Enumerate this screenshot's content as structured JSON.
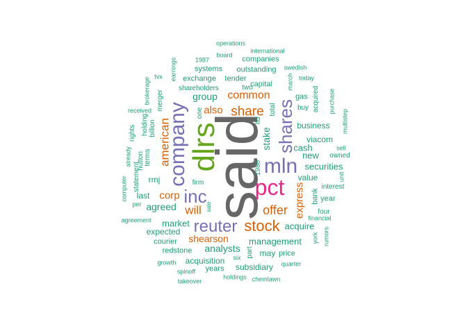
{
  "palette": {
    "teal": "#1b9e77",
    "orange": "#d95f02",
    "purple": "#7570b3",
    "pink": "#e7298a",
    "green": "#66a61e",
    "gray": "#666666"
  },
  "words": [
    {
      "text": "said",
      "color": "gray"
    },
    {
      "text": "dlrs",
      "color": "green"
    },
    {
      "text": "pct",
      "color": "pink"
    },
    {
      "text": "company",
      "color": "purple"
    },
    {
      "text": "mln",
      "color": "purple"
    },
    {
      "text": "shares",
      "color": "purple"
    },
    {
      "text": "inc",
      "color": "purple"
    },
    {
      "text": "reuter",
      "color": "purple"
    },
    {
      "text": "stock",
      "color": "orange"
    },
    {
      "text": "share",
      "color": "orange"
    },
    {
      "text": "common",
      "color": "orange"
    },
    {
      "text": "offer",
      "color": "orange"
    },
    {
      "text": "american",
      "color": "orange"
    },
    {
      "text": "also",
      "color": "orange"
    },
    {
      "text": "will",
      "color": "orange"
    },
    {
      "text": "corp",
      "color": "orange"
    },
    {
      "text": "express",
      "color": "orange"
    },
    {
      "text": "shearson",
      "color": "orange"
    },
    {
      "text": "group",
      "color": "teal"
    },
    {
      "text": "agreed",
      "color": "teal"
    },
    {
      "text": "management",
      "color": "teal"
    },
    {
      "text": "analysts",
      "color": "teal"
    },
    {
      "text": "market",
      "color": "teal"
    },
    {
      "text": "acquire",
      "color": "teal"
    },
    {
      "text": "securities",
      "color": "teal"
    },
    {
      "text": "business",
      "color": "teal"
    },
    {
      "text": "cash",
      "color": "teal"
    },
    {
      "text": "new",
      "color": "teal"
    },
    {
      "text": "value",
      "color": "teal"
    },
    {
      "text": "stake",
      "color": "teal"
    },
    {
      "text": "viacom",
      "color": "teal"
    },
    {
      "text": "acquisition",
      "color": "teal"
    },
    {
      "text": "subsidiary",
      "color": "teal"
    },
    {
      "text": "exchange",
      "color": "teal"
    },
    {
      "text": "tender",
      "color": "teal"
    },
    {
      "text": "capital",
      "color": "teal"
    },
    {
      "text": "outstanding",
      "color": "teal"
    },
    {
      "text": "companies",
      "color": "teal"
    },
    {
      "text": "systems",
      "color": "teal"
    },
    {
      "text": "shareholders",
      "color": "teal"
    },
    {
      "text": "two",
      "color": "teal"
    },
    {
      "text": "rmj",
      "color": "teal"
    },
    {
      "text": "last",
      "color": "teal"
    },
    {
      "text": "expected",
      "color": "teal"
    },
    {
      "text": "courier",
      "color": "teal"
    },
    {
      "text": "redstone",
      "color": "teal"
    },
    {
      "text": "years",
      "color": "teal"
    },
    {
      "text": "may",
      "color": "teal"
    },
    {
      "text": "price",
      "color": "teal"
    },
    {
      "text": "firm",
      "color": "teal"
    },
    {
      "text": "year",
      "color": "teal"
    },
    {
      "text": "four",
      "color": "teal"
    },
    {
      "text": "interest",
      "color": "teal"
    },
    {
      "text": "bank",
      "color": "teal"
    },
    {
      "text": "owned",
      "color": "teal"
    },
    {
      "text": "buy",
      "color": "teal"
    },
    {
      "text": "gas",
      "color": "teal"
    },
    {
      "text": "1986",
      "color": "teal"
    },
    {
      "text": "total",
      "color": "teal"
    },
    {
      "text": "ltd",
      "color": "teal"
    },
    {
      "text": "one",
      "color": "teal"
    },
    {
      "text": "merger",
      "color": "teal"
    },
    {
      "text": "billion",
      "color": "teal"
    },
    {
      "text": "holding",
      "color": "teal"
    },
    {
      "text": "terms",
      "color": "teal"
    },
    {
      "text": "hutton",
      "color": "teal"
    },
    {
      "text": "statement",
      "color": "teal"
    },
    {
      "text": "rights",
      "color": "teal"
    },
    {
      "text": "already",
      "color": "teal"
    },
    {
      "text": "computer",
      "color": "teal"
    },
    {
      "text": "per",
      "color": "teal"
    },
    {
      "text": "agreement",
      "color": "teal"
    },
    {
      "text": "received",
      "color": "teal"
    },
    {
      "text": "brokerage",
      "color": "teal"
    },
    {
      "text": "tvx",
      "color": "teal"
    },
    {
      "text": "earnings",
      "color": "teal"
    },
    {
      "text": "1987",
      "color": "teal"
    },
    {
      "text": "board",
      "color": "teal"
    },
    {
      "text": "operations",
      "color": "teal"
    },
    {
      "text": "international",
      "color": "teal"
    },
    {
      "text": "swedish",
      "color": "teal"
    },
    {
      "text": "march",
      "color": "teal"
    },
    {
      "text": "today",
      "color": "teal"
    },
    {
      "text": "acquired",
      "color": "teal"
    },
    {
      "text": "purchase",
      "color": "teal"
    },
    {
      "text": "multistep",
      "color": "teal"
    },
    {
      "text": "sell",
      "color": "teal"
    },
    {
      "text": "unit",
      "color": "teal"
    },
    {
      "text": "financial",
      "color": "teal"
    },
    {
      "text": "york",
      "color": "teal"
    },
    {
      "text": "rumors",
      "color": "teal"
    },
    {
      "text": "quarter",
      "color": "teal"
    },
    {
      "text": "six",
      "color": "teal"
    },
    {
      "text": "part",
      "color": "teal"
    },
    {
      "text": "growth",
      "color": "teal"
    },
    {
      "text": "spinoff",
      "color": "teal"
    },
    {
      "text": "takeover",
      "color": "teal"
    },
    {
      "text": "holdings",
      "color": "teal"
    },
    {
      "text": "chemlawn",
      "color": "teal"
    },
    {
      "text": "sale",
      "color": "teal"
    }
  ]
}
